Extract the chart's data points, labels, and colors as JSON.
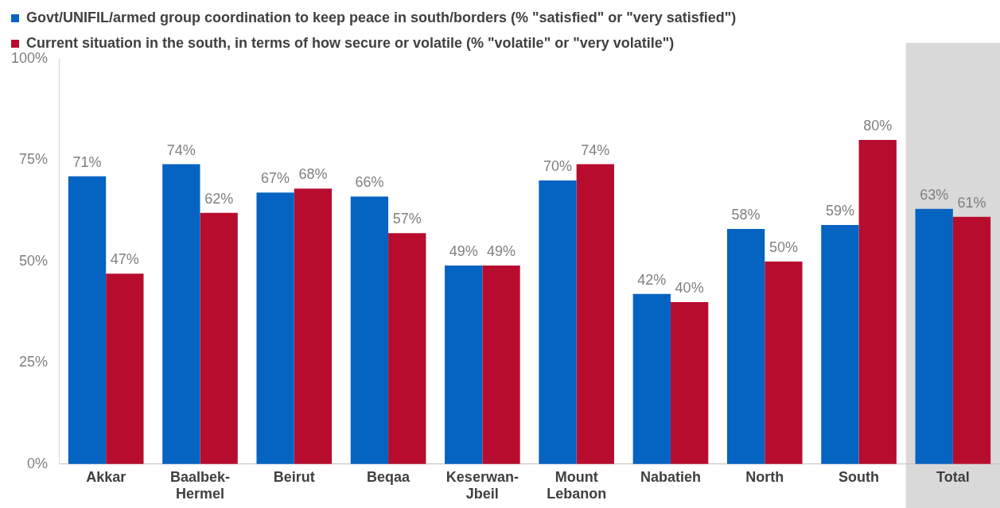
{
  "chart_data": {
    "type": "bar",
    "categories": [
      "Akkar",
      "Baalbek-Hermel",
      "Beirut",
      "Beqaa",
      "Keserwan-Jbeil",
      "Mount Lebanon",
      "Nabatieh",
      "North",
      "South",
      "Total"
    ],
    "series": [
      {
        "name": "Govt/UNIFIL/armed group coordination to keep peace in south/borders (% \"satisfied\" or \"very satisfied\")",
        "color": "#0563c1",
        "values": [
          71,
          74,
          67,
          66,
          49,
          70,
          42,
          58,
          59,
          63
        ],
        "value_labels": [
          "71%",
          "74%",
          "67%",
          "66%",
          "49%",
          "70%",
          "42%",
          "58%",
          "59%",
          "63%"
        ]
      },
      {
        "name": "Current situation in the south, in terms of how secure or volatile (% \"volatile\" or \"very volatile\")",
        "color": "#b80c2f",
        "values": [
          47,
          62,
          68,
          57,
          49,
          74,
          40,
          50,
          80,
          61
        ],
        "value_labels": [
          "47%",
          "62%",
          "68%",
          "57%",
          "49%",
          "74%",
          "40%",
          "50%",
          "80%",
          "61%"
        ]
      }
    ],
    "ylim": [
      0,
      100
    ],
    "yticks": [
      {
        "value": 0,
        "label": "0%"
      },
      {
        "value": 25,
        "label": "25%"
      },
      {
        "value": 50,
        "label": "50%"
      },
      {
        "value": 75,
        "label": "75%"
      },
      {
        "value": 100,
        "label": "100%"
      }
    ],
    "bands": [
      {
        "axis": "x",
        "from": "Total",
        "to": "Total",
        "color": "#d9d9d9"
      }
    ],
    "grid": false,
    "legend": "top"
  }
}
